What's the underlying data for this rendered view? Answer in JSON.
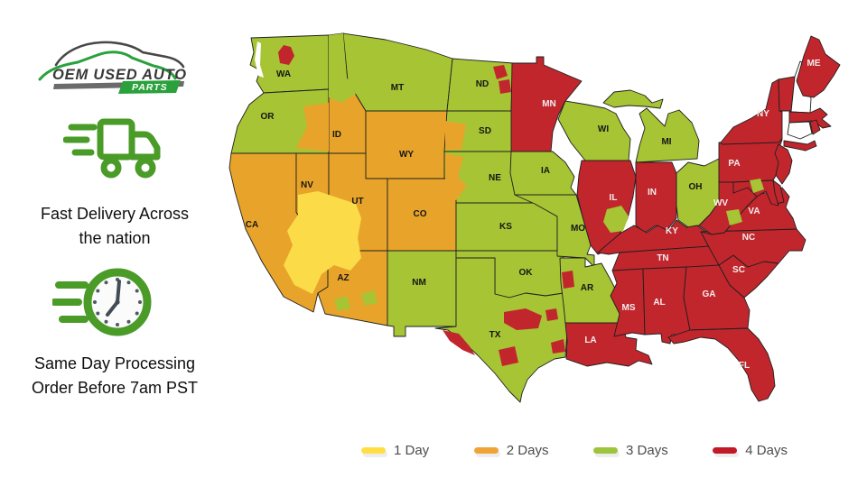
{
  "logo": {
    "title": "OEM USED AUTO",
    "badge": "PARTS"
  },
  "features": [
    {
      "icon": "delivery-truck-icon",
      "line1": "Fast Delivery Across",
      "line2": "the nation"
    },
    {
      "icon": "clock-icon",
      "line1": "Same Day Processing",
      "line2": "Order Before 7am PST"
    }
  ],
  "legend": [
    {
      "label": "1 Day",
      "color": "#ffdf43"
    },
    {
      "label": "2 Days",
      "color": "#f0a437"
    },
    {
      "label": "3 Days",
      "color": "#9dc43c"
    },
    {
      "label": "4 Days",
      "color": "#c01a28"
    }
  ],
  "map": {
    "day_colors": {
      "1": "#fbdc48",
      "2": "#e8a42a",
      "3": "#a6c434",
      "4": "#c1262d"
    },
    "uncolored": "#ffffff",
    "stroke": "#1f1f1f",
    "label_dark": "#161616",
    "label_light": "#f4eeee",
    "states": [
      {
        "id": "WA",
        "label": "WA",
        "days": 3
      },
      {
        "id": "OR",
        "label": "OR",
        "days": 3
      },
      {
        "id": "CA",
        "label": "CA",
        "days": 2
      },
      {
        "id": "NV",
        "label": "NV",
        "days": 2
      },
      {
        "id": "ID",
        "label": "ID",
        "days": 2
      },
      {
        "id": "MT",
        "label": "MT",
        "days": 3
      },
      {
        "id": "WY",
        "label": "WY",
        "days": 2
      },
      {
        "id": "UT",
        "label": "UT",
        "days": 2
      },
      {
        "id": "CO",
        "label": "CO",
        "days": 2
      },
      {
        "id": "AZ",
        "label": "AZ",
        "days": 2
      },
      {
        "id": "NM",
        "label": "NM",
        "days": 3
      },
      {
        "id": "ND",
        "label": "ND",
        "days": 3
      },
      {
        "id": "SD",
        "label": "SD",
        "days": 3
      },
      {
        "id": "NE",
        "label": "NE",
        "days": 3
      },
      {
        "id": "KS",
        "label": "KS",
        "days": 3
      },
      {
        "id": "OK",
        "label": "OK",
        "days": 3
      },
      {
        "id": "TX",
        "label": "TX",
        "days": 3
      },
      {
        "id": "MN",
        "label": "MN",
        "days": 4
      },
      {
        "id": "IA",
        "label": "IA",
        "days": 3
      },
      {
        "id": "MO",
        "label": "MO",
        "days": 3
      },
      {
        "id": "AR",
        "label": "AR",
        "days": 3
      },
      {
        "id": "LA",
        "label": "LA",
        "days": 4
      },
      {
        "id": "WI",
        "label": "WI",
        "days": 3
      },
      {
        "id": "IL",
        "label": "IL",
        "days": 4
      },
      {
        "id": "MI",
        "label": "MI",
        "days": 3
      },
      {
        "id": "IN",
        "label": "IN",
        "days": 4
      },
      {
        "id": "OH",
        "label": "OH",
        "days": 3
      },
      {
        "id": "KY",
        "label": "KY",
        "days": 4
      },
      {
        "id": "TN",
        "label": "TN",
        "days": 4
      },
      {
        "id": "MS",
        "label": "MS",
        "days": 4
      },
      {
        "id": "AL",
        "label": "AL",
        "days": 4
      },
      {
        "id": "GA",
        "label": "GA",
        "days": 4
      },
      {
        "id": "FL",
        "label": "FL",
        "days": 4
      },
      {
        "id": "SC",
        "label": "SC",
        "days": 4
      },
      {
        "id": "NC",
        "label": "NC",
        "days": 4
      },
      {
        "id": "VA",
        "label": "VA",
        "days": 4
      },
      {
        "id": "WV",
        "label": "WV",
        "days": 4
      },
      {
        "id": "PA",
        "label": "PA",
        "days": 4
      },
      {
        "id": "NY",
        "label": "NY",
        "days": 4
      },
      {
        "id": "NJ",
        "label": "",
        "days": 4
      },
      {
        "id": "DE",
        "label": "",
        "days": 4
      },
      {
        "id": "MD",
        "label": "",
        "days": 4
      },
      {
        "id": "VT",
        "label": "",
        "days": 4
      },
      {
        "id": "NH",
        "label": "",
        "days": null
      },
      {
        "id": "MA",
        "label": "",
        "days": 4
      },
      {
        "id": "CT",
        "label": "",
        "days": null
      },
      {
        "id": "RI",
        "label": "",
        "days": 4
      },
      {
        "id": "ME",
        "label": "ME",
        "days": 4
      }
    ],
    "patches": [
      {
        "id": "wa-metro",
        "days": 4
      },
      {
        "id": "puget-sound",
        "days": null
      },
      {
        "id": "or-east",
        "days": 2
      },
      {
        "id": "id-north",
        "days": 3
      },
      {
        "id": "nv-vegas-region",
        "days": 1
      },
      {
        "id": "az-south-1",
        "days": 3
      },
      {
        "id": "az-south-2",
        "days": 3
      },
      {
        "id": "sd-west",
        "days": 2
      },
      {
        "id": "ne-west",
        "days": 2
      },
      {
        "id": "nd-ne-1",
        "days": 4
      },
      {
        "id": "nd-ne-2",
        "days": 4
      },
      {
        "id": "il-central",
        "days": 3
      },
      {
        "id": "va-north",
        "days": 3
      },
      {
        "id": "va-central",
        "days": 3
      },
      {
        "id": "tx-west",
        "days": 4
      },
      {
        "id": "tx-central",
        "days": 4
      },
      {
        "id": "tx-south-central",
        "days": 4
      },
      {
        "id": "tx-houston",
        "days": 4
      },
      {
        "id": "tx-northeast",
        "days": 4
      },
      {
        "id": "ar-west",
        "days": 4
      }
    ]
  }
}
